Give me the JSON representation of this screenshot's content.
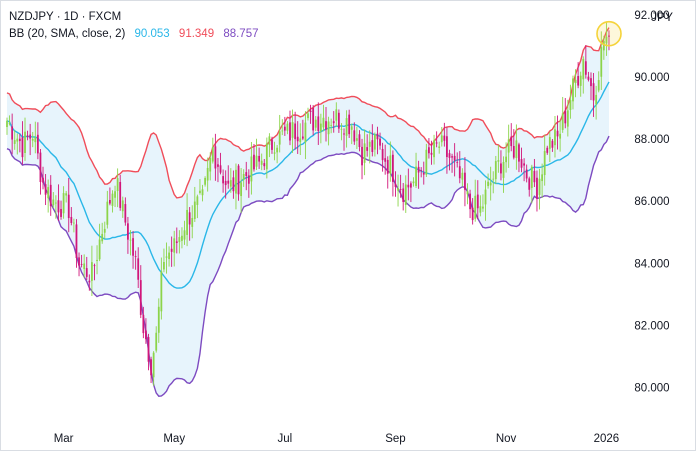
{
  "legend": {
    "symbol_line": "NZDJPY · 1D · FXCM",
    "indicator": "BB (20, SMA, close, 2)",
    "basis_value": "90.053",
    "upper_value": "91.349",
    "lower_value": "88.757"
  },
  "colors": {
    "basis": "#2ab7e8",
    "upper": "#f04d5a",
    "lower": "#7d4bc1",
    "band_fill": "#e7f4fc",
    "up_candle": "#8cd44a",
    "down_candle": "#d1167a",
    "highlight": "#f5d33a"
  },
  "chart_data": {
    "type": "candlestick",
    "title": "NZDJPY · 1D · FXCM",
    "unit": "JPY",
    "ylim": [
      79.5,
      92.0
    ],
    "yticks": [
      "92.000",
      "90.000",
      "88.000",
      "86.000",
      "84.000",
      "82.000",
      "80.000"
    ],
    "xticks": [
      "Mar",
      "May",
      "Jul",
      "Sep",
      "Nov",
      "2026"
    ],
    "xtick_index": [
      22,
      65,
      108,
      151,
      194,
      233
    ],
    "legend_position": "top-left",
    "grid": false,
    "keyframes_close": [
      [
        0,
        88.6
      ],
      [
        6,
        87.8
      ],
      [
        10,
        88.2
      ],
      [
        14,
        86.6
      ],
      [
        18,
        86.0
      ],
      [
        24,
        85.8
      ],
      [
        28,
        84.0
      ],
      [
        33,
        83.6
      ],
      [
        37,
        85.1
      ],
      [
        42,
        86.7
      ],
      [
        47,
        85.0
      ],
      [
        50,
        84.0
      ],
      [
        53,
        82.0
      ],
      [
        56,
        80.8
      ],
      [
        58,
        81.6
      ],
      [
        61,
        84.2
      ],
      [
        65,
        84.5
      ],
      [
        70,
        85.5
      ],
      [
        76,
        86.0
      ],
      [
        80,
        87.7
      ],
      [
        86,
        86.4
      ],
      [
        92,
        86.8
      ],
      [
        98,
        87.2
      ],
      [
        104,
        88.0
      ],
      [
        110,
        88.2
      ],
      [
        116,
        88.5
      ],
      [
        122,
        88.7
      ],
      [
        128,
        88.7
      ],
      [
        134,
        88.5
      ],
      [
        138,
        87.6
      ],
      [
        144,
        87.8
      ],
      [
        150,
        87.0
      ],
      [
        154,
        86.4
      ],
      [
        158,
        86.6
      ],
      [
        162,
        87.2
      ],
      [
        168,
        87.8
      ],
      [
        172,
        87.4
      ],
      [
        176,
        86.7
      ],
      [
        180,
        85.8
      ],
      [
        184,
        85.7
      ],
      [
        188,
        86.6
      ],
      [
        192,
        87.3
      ],
      [
        198,
        87.8
      ],
      [
        202,
        86.9
      ],
      [
        206,
        86.5
      ],
      [
        210,
        87.8
      ],
      [
        214,
        88.0
      ],
      [
        220,
        89.6
      ],
      [
        224,
        90.6
      ],
      [
        228,
        89.4
      ],
      [
        232,
        91.2
      ],
      [
        234,
        91.3
      ]
    ],
    "candles_count": 235,
    "last_price": "91.349"
  }
}
